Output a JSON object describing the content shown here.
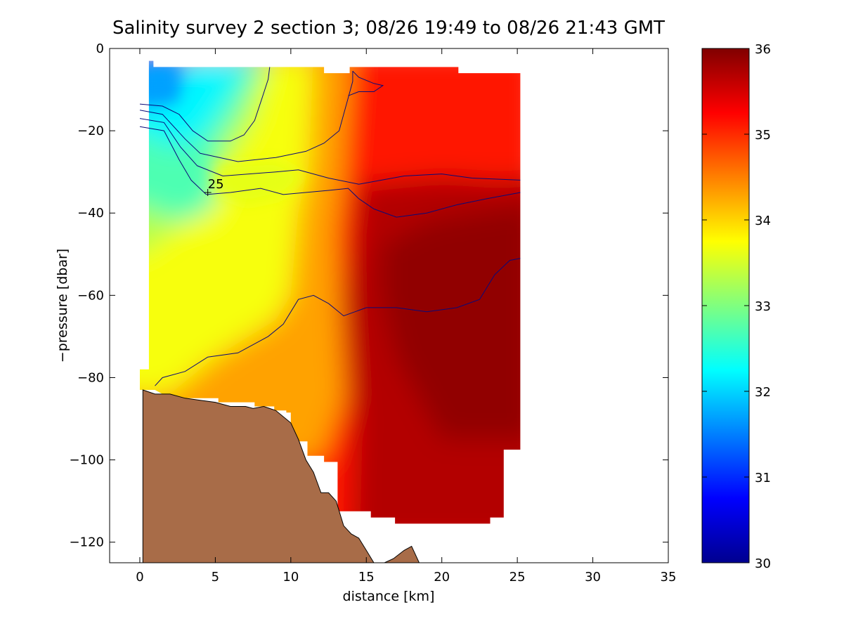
{
  "chart_data": {
    "type": "heatmap",
    "title": "Salinity survey 2 section 3; 08/26 19:49 to 08/26 21:43 GMT",
    "xlabel": "distance [km]",
    "ylabel": "−pressure [dbar]",
    "xlim": [
      -2,
      35
    ],
    "ylim": [
      -125,
      0
    ],
    "x_ticks": [
      0,
      5,
      10,
      15,
      20,
      25,
      30,
      35
    ],
    "y_ticks": [
      0,
      -20,
      -40,
      -60,
      -80,
      -100,
      -120
    ],
    "x_tick_labels": [
      "0",
      "5",
      "10",
      "15",
      "20",
      "25",
      "30",
      "35"
    ],
    "y_tick_labels": [
      "0",
      "−20",
      "−40",
      "−60",
      "−80",
      "−100",
      "−120"
    ],
    "colorbar": {
      "range": [
        30,
        36
      ],
      "ticks": [
        30,
        31,
        32,
        33,
        34,
        35,
        36
      ],
      "tick_labels": [
        "30",
        "31",
        "32",
        "33",
        "34",
        "35",
        "36"
      ],
      "colormap": "jet"
    },
    "contour_label": {
      "text": "25",
      "x": 4.5,
      "y": -35
    },
    "grid": false,
    "colors": {
      "bathymetry": "#a86c48",
      "contour": "#0a0a7a",
      "background": "#ffffff"
    }
  }
}
